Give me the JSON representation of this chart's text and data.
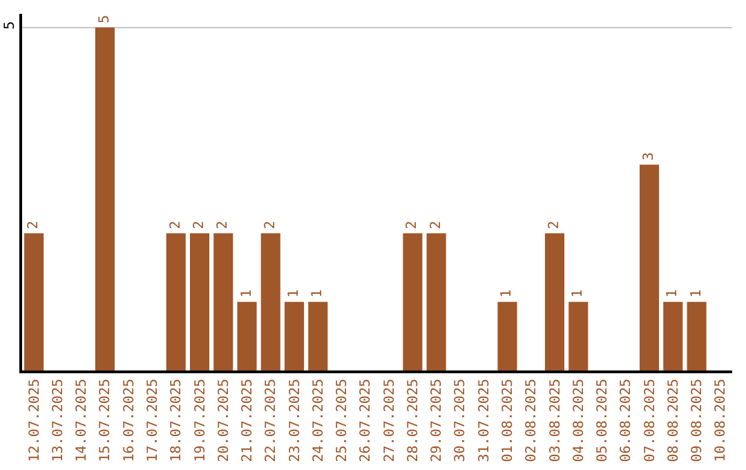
{
  "chart_data": {
    "type": "bar",
    "categories": [
      "12.07.2025",
      "13.07.2025",
      "14.07.2025",
      "15.07.2025",
      "16.07.2025",
      "17.07.2025",
      "18.07.2025",
      "19.07.2025",
      "20.07.2025",
      "21.07.2025",
      "22.07.2025",
      "23.07.2025",
      "24.07.2025",
      "25.07.2025",
      "26.07.2025",
      "27.07.2025",
      "28.07.2025",
      "29.07.2025",
      "30.07.2025",
      "31.07.2025",
      "01.08.2025",
      "02.08.2025",
      "03.08.2025",
      "04.08.2025",
      "05.08.2025",
      "06.08.2025",
      "07.08.2025",
      "08.08.2025",
      "09.08.2025",
      "10.08.2025"
    ],
    "values": [
      2,
      0,
      0,
      5,
      0,
      0,
      2,
      2,
      2,
      1,
      2,
      1,
      1,
      0,
      0,
      0,
      2,
      2,
      0,
      0,
      1,
      0,
      2,
      1,
      0,
      0,
      3,
      1,
      1,
      0
    ],
    "value_labels": [
      "2",
      null,
      null,
      "5",
      null,
      null,
      "2",
      "2",
      "2",
      "1",
      "2",
      "1",
      "1",
      null,
      null,
      null,
      "2",
      "2",
      null,
      null,
      "1",
      null,
      "2",
      "1",
      null,
      null,
      "3",
      "1",
      "1",
      null
    ],
    "color": "#a0572a",
    "ylim": [
      0,
      5.2
    ],
    "yticks": [
      5
    ],
    "grid": "y"
  }
}
